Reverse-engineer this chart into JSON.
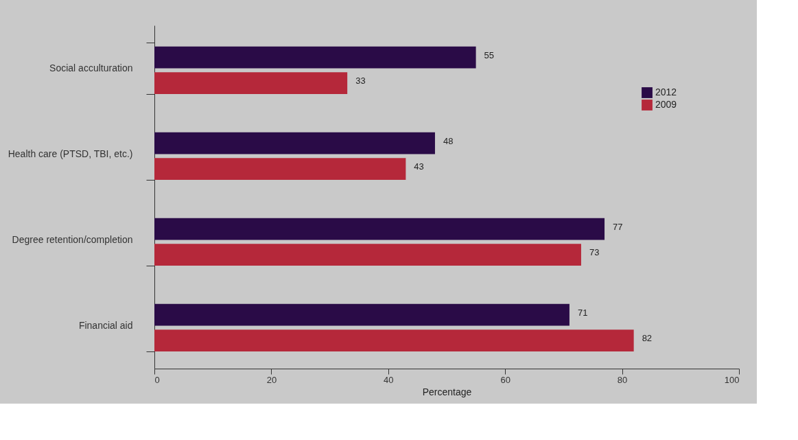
{
  "chart_data": {
    "type": "bar",
    "orientation": "horizontal",
    "xlabel": "Percentage",
    "categories": [
      "Social acculturation",
      "Health care (PTSD, TBI, etc.)",
      "Degree retention/completion",
      "Financial aid"
    ],
    "series": [
      {
        "name": "2012",
        "color": "#2a0b47",
        "values": [
          55,
          48,
          77,
          71
        ]
      },
      {
        "name": "2009",
        "color": "#b5283a",
        "values": [
          33,
          43,
          73,
          82
        ]
      }
    ],
    "xlim": [
      0,
      100
    ],
    "xticks": [
      0,
      20,
      40,
      60,
      80,
      100
    ],
    "grid": false,
    "legend": "top right",
    "data_labels": true
  }
}
